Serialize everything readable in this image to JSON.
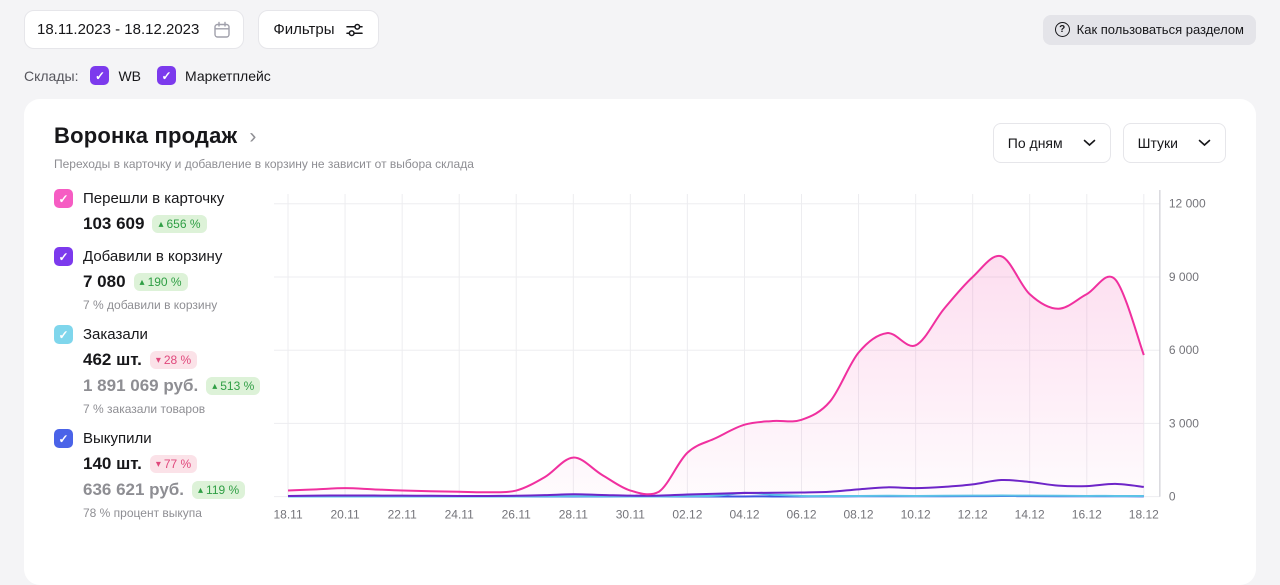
{
  "icons": {
    "help": "?",
    "check": "✓",
    "title_chevron": "›"
  },
  "colors": {
    "accent_purple": "#7c3aed",
    "pink_line": "#f0309f",
    "green_badge": "#2f9e44",
    "red_badge": "#e0487c"
  },
  "topbar": {
    "date_range": "18.11.2023 - 18.12.2023",
    "filters_label": "Фильтры",
    "help_label": "Как пользоваться разделом"
  },
  "warehouses": {
    "label": "Склады:",
    "items": [
      {
        "label": "WB",
        "checked": true
      },
      {
        "label": "Маркетплейс",
        "checked": true
      }
    ]
  },
  "funnel": {
    "title": "Воронка продаж",
    "subtitle": "Переходы в карточку и добавление в корзину не зависит от выбора склада",
    "period_select": "По дням",
    "units_select": "Штуки"
  },
  "metrics": [
    {
      "label": "Перешли в карточку",
      "color": "#f65cc3",
      "checked": true,
      "rows": [
        {
          "value": "103 609",
          "badge": "656 %",
          "dir": "up"
        }
      ],
      "note": ""
    },
    {
      "label": "Добавили в корзину",
      "color": "#7c3aed",
      "checked": true,
      "rows": [
        {
          "value": "7 080",
          "badge": "190 %",
          "dir": "up"
        }
      ],
      "note": "7 % добавили в корзину"
    },
    {
      "label": "Заказали",
      "color": "#7fd6ec",
      "checked": true,
      "rows": [
        {
          "value": "462 шт.",
          "badge": "28 %",
          "dir": "down"
        },
        {
          "value": "1 891 069 руб.",
          "badge": "513 %",
          "dir": "up",
          "muted": true
        }
      ],
      "note": "7 % заказали товаров"
    },
    {
      "label": "Выкупили",
      "color": "#4a63e8",
      "checked": true,
      "rows": [
        {
          "value": "140 шт.",
          "badge": "77 %",
          "dir": "down"
        },
        {
          "value": "636 621 руб.",
          "badge": "119 %",
          "dir": "up",
          "muted": true
        }
      ],
      "note": "78 % процент выкупа"
    }
  ],
  "chart_data": {
    "type": "line",
    "title": "Воронка продаж",
    "x_tick_labels": [
      "18.11",
      "20.11",
      "22.11",
      "24.11",
      "26.11",
      "28.11",
      "30.11",
      "02.12",
      "04.12",
      "06.12",
      "08.12",
      "10.12",
      "12.12",
      "14.12",
      "16.12",
      "18.12"
    ],
    "y_ticks": [
      {
        "value": 0,
        "label": "0"
      },
      {
        "value": 3000,
        "label": "3 000"
      },
      {
        "value": 6000,
        "label": "6 000"
      },
      {
        "value": 9000,
        "label": "9 000"
      },
      {
        "value": 12000,
        "label": "12 000"
      }
    ],
    "ylim": [
      0,
      12400
    ],
    "grid": true,
    "y_axis_position": "right",
    "series": [
      {
        "name": "Перешли в карточку",
        "color": "#f0309f",
        "fill": true,
        "values": [
          250,
          300,
          350,
          300,
          250,
          220,
          200,
          180,
          250,
          800,
          1600,
          900,
          250,
          200,
          1800,
          2400,
          2950,
          3100,
          3150,
          3900,
          5900,
          6700,
          6200,
          7700,
          9000,
          9850,
          8300,
          7700,
          8300,
          8900,
          5800
        ]
      },
      {
        "name": "Добавили в корзину",
        "color": "#6a25c9",
        "fill": false,
        "values": [
          30,
          40,
          50,
          45,
          40,
          35,
          30,
          30,
          35,
          60,
          100,
          70,
          40,
          40,
          90,
          120,
          150,
          160,
          170,
          200,
          300,
          380,
          350,
          400,
          500,
          680,
          600,
          450,
          430,
          520,
          400
        ]
      },
      {
        "name": "Заказали",
        "color": "#59c4e8",
        "fill": false,
        "values": [
          10,
          10,
          10,
          10,
          10,
          10,
          10,
          10,
          10,
          15,
          20,
          15,
          10,
          10,
          20,
          40,
          150,
          80,
          30,
          25,
          30,
          35,
          30,
          35,
          40,
          45,
          40,
          35,
          30,
          30,
          25
        ]
      },
      {
        "name": "Выкупили",
        "color": "#3a57e2",
        "fill": false,
        "values": [
          5,
          5,
          5,
          5,
          5,
          5,
          5,
          5,
          5,
          6,
          8,
          6,
          5,
          5,
          6,
          8,
          10,
          10,
          10,
          12,
          15,
          18,
          16,
          18,
          20,
          25,
          22,
          18,
          16,
          18,
          14
        ]
      }
    ]
  }
}
